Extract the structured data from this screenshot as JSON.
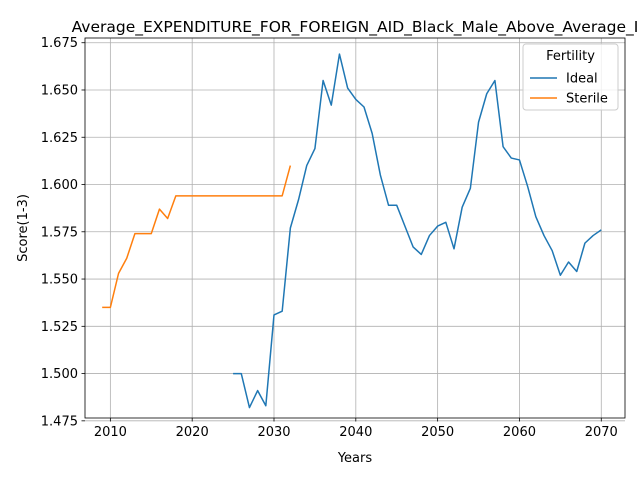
{
  "chart_data": {
    "type": "line",
    "title": "Average_EXPENDITURE_FOR_FOREIGN_AID_Black_Male_Above_Average_I",
    "xlabel": "Years",
    "ylabel": "Score(1-3)",
    "xlim": [
      2006.9,
      2072.9
    ],
    "ylim": [
      1.4765,
      1.6775
    ],
    "xticks": [
      2010,
      2020,
      2030,
      2040,
      2050,
      2060,
      2070
    ],
    "yticks": [
      1.475,
      1.5,
      1.525,
      1.55,
      1.575,
      1.6,
      1.625,
      1.65,
      1.675
    ],
    "xtick_labels": [
      "2010",
      "2020",
      "2030",
      "2040",
      "2050",
      "2060",
      "2070"
    ],
    "ytick_labels": [
      "1.475",
      "1.500",
      "1.525",
      "1.550",
      "1.575",
      "1.600",
      "1.625",
      "1.650",
      "1.675"
    ],
    "grid": true,
    "legend": {
      "title": "Fertility",
      "position": "upper right"
    },
    "series": [
      {
        "name": "Ideal",
        "color": "#1f77b4",
        "x": [
          2025,
          2026,
          2027,
          2028,
          2029,
          2030,
          2031,
          2032,
          2033,
          2034,
          2035,
          2036,
          2037,
          2038,
          2039,
          2040,
          2041,
          2042,
          2043,
          2044,
          2045,
          2046,
          2047,
          2048,
          2049,
          2050,
          2051,
          2052,
          2053,
          2054,
          2055,
          2056,
          2057,
          2058,
          2059,
          2060,
          2061,
          2062,
          2063,
          2064,
          2065,
          2066,
          2067,
          2068,
          2069,
          2070
        ],
        "y": [
          1.5,
          1.5,
          1.482,
          1.491,
          1.483,
          1.531,
          1.533,
          1.577,
          1.592,
          1.61,
          1.619,
          1.655,
          1.642,
          1.669,
          1.651,
          1.645,
          1.641,
          1.627,
          1.605,
          1.589,
          1.589,
          1.578,
          1.567,
          1.563,
          1.573,
          1.578,
          1.58,
          1.566,
          1.588,
          1.598,
          1.633,
          1.648,
          1.655,
          1.62,
          1.614,
          1.613,
          1.599,
          1.583,
          1.573,
          1.565,
          1.552,
          1.559,
          1.554,
          1.569,
          1.573,
          1.576
        ]
      },
      {
        "name": "Sterile",
        "color": "#ff7f0e",
        "x": [
          2009,
          2010,
          2011,
          2012,
          2013,
          2014,
          2015,
          2016,
          2017,
          2018,
          2019,
          2020,
          2021,
          2022,
          2023,
          2024,
          2025,
          2026,
          2027,
          2028,
          2029,
          2030,
          2031,
          2032
        ],
        "y": [
          1.535,
          1.535,
          1.553,
          1.561,
          1.574,
          1.574,
          1.574,
          1.587,
          1.582,
          1.594,
          1.594,
          1.594,
          1.594,
          1.594,
          1.594,
          1.594,
          1.594,
          1.594,
          1.594,
          1.594,
          1.594,
          1.594,
          1.594,
          1.61
        ]
      }
    ]
  }
}
